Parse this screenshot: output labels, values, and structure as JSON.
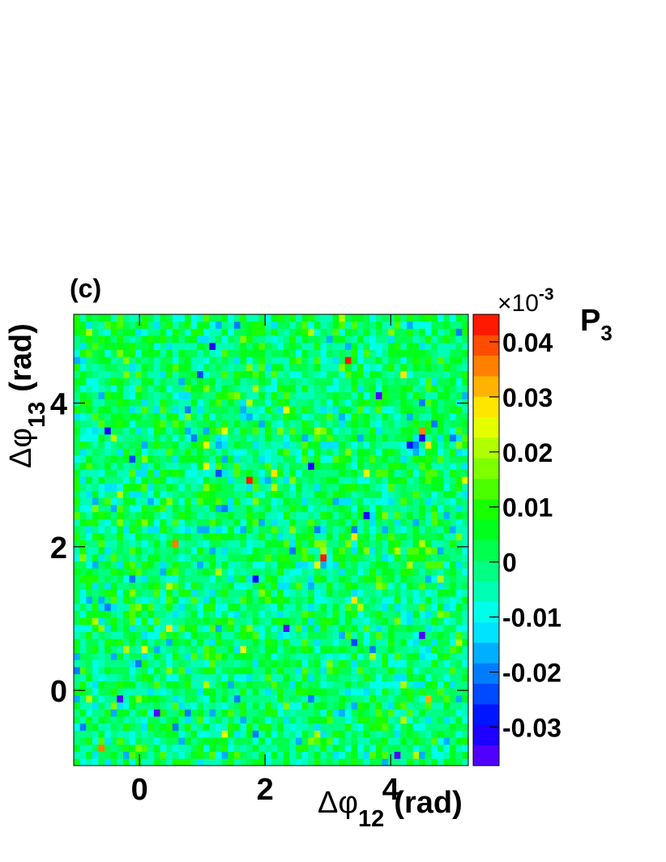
{
  "panel_label": "(c)",
  "chart_data": {
    "type": "heatmap",
    "title": "",
    "xlabel": {
      "main": "Δφ",
      "sub": "12",
      "unit": "(rad)"
    },
    "ylabel": {
      "main": "Δφ",
      "sub": "13",
      "unit": "(rad)"
    },
    "xlim": [
      -1.047,
      5.236
    ],
    "ylim": [
      -1.047,
      5.236
    ],
    "xticks": [
      0,
      2,
      4
    ],
    "yticks": [
      0,
      2,
      4
    ],
    "x_tick_labels": [
      "0",
      "2",
      "4"
    ],
    "y_tick_labels": [
      "0",
      "2",
      "4"
    ],
    "bins": {
      "nx": 64,
      "ny": 64
    },
    "colorbar": {
      "title": {
        "main": "P",
        "sub": "3"
      },
      "exponent_label": "×10",
      "exponent": "-3",
      "min": -0.037,
      "max": 0.045,
      "ticks": [
        -0.03,
        -0.02,
        -0.01,
        0,
        0.01,
        0.02,
        0.03,
        0.04
      ],
      "tick_labels": [
        "-0.03",
        "-0.02",
        "-0.01",
        "0",
        "0.01",
        "0.02",
        "0.03",
        "0.04"
      ]
    },
    "distribution": {
      "mean": 0.0,
      "stddev": 0.0075
    },
    "hotspots": [
      {
        "x": 2.92,
        "y": 1.86,
        "value": 0.044
      },
      {
        "x": 1.76,
        "y": 2.96,
        "value": 0.042
      },
      {
        "x": 4.6,
        "y": 3.4,
        "value": 0.043
      },
      {
        "x": 4.5,
        "y": 3.64,
        "value": 0.035
      },
      {
        "x": 3.3,
        "y": 4.56,
        "value": 0.044
      },
      {
        "x": 4.22,
        "y": 4.36,
        "value": 0.03
      },
      {
        "x": 1.06,
        "y": 3.46,
        "value": 0.026
      },
      {
        "x": 3.38,
        "y": 1.22,
        "value": 0.028
      },
      {
        "x": 2.84,
        "y": 1.76,
        "value": 0.024
      },
      {
        "x": 4.58,
        "y": 3.46,
        "value": 0.028
      },
      {
        "x": 5.22,
        "y": 2.9,
        "value": 0.026
      },
      {
        "x": 0.58,
        "y": 2.04,
        "value": 0.034
      },
      {
        "x": 0.44,
        "y": 0.86,
        "value": 0.03
      },
      {
        "x": 2.1,
        "y": 3.06,
        "value": 0.028
      },
      {
        "x": 1.7,
        "y": 0.54,
        "value": 0.026
      },
      {
        "x": -0.62,
        "y": -0.82,
        "value": 0.036
      },
      {
        "x": 3.46,
        "y": 2.1,
        "value": 0.03
      },
      {
        "x": 4.76,
        "y": 1.56,
        "value": 0.022
      },
      {
        "x": 4.58,
        "y": -0.1,
        "value": 0.032
      },
      {
        "x": 0.28,
        "y": -0.3,
        "value": -0.036
      },
      {
        "x": -0.28,
        "y": -0.12,
        "value": -0.036
      },
      {
        "x": 2.34,
        "y": 0.86,
        "value": -0.034
      },
      {
        "x": 4.06,
        "y": -0.92,
        "value": -0.036
      },
      {
        "x": 3.78,
        "y": 4.08,
        "value": -0.034
      },
      {
        "x": 1.12,
        "y": 4.76,
        "value": -0.032
      },
      {
        "x": 2.76,
        "y": 3.16,
        "value": -0.03
      },
      {
        "x": 4.46,
        "y": 0.76,
        "value": -0.034
      },
      {
        "x": -0.46,
        "y": 3.64,
        "value": -0.032
      },
      {
        "x": 1.86,
        "y": 1.56,
        "value": -0.03
      },
      {
        "x": 3.58,
        "y": 2.46,
        "value": -0.032
      }
    ]
  }
}
